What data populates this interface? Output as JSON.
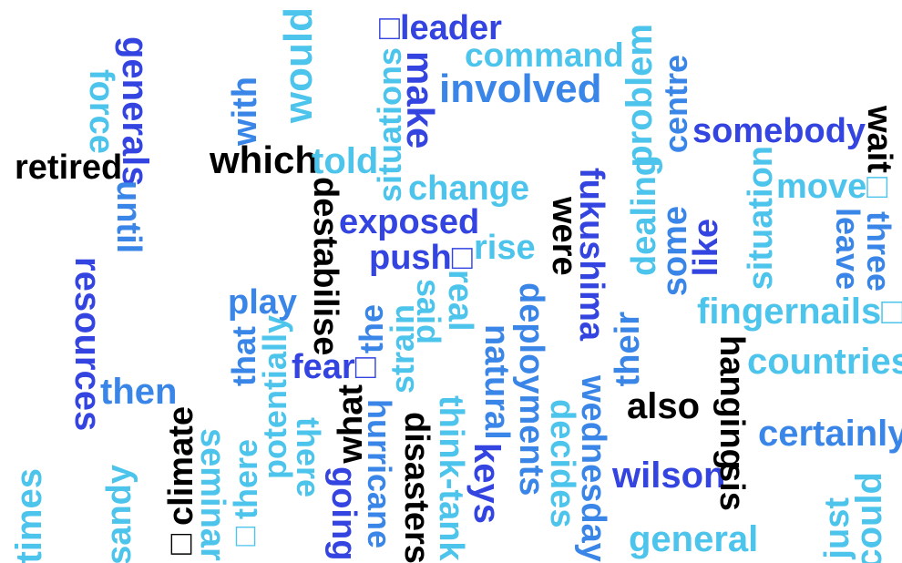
{
  "colors": {
    "black": "#000000",
    "royal_blue": "#3344e0",
    "mid_blue": "#3a86e8",
    "sky_blue": "#4cc4ec",
    "cyan": "#3fd1e8"
  },
  "words": [
    {
      "id": "leader",
      "text": "□leader"
    },
    {
      "id": "command",
      "text": "command"
    },
    {
      "id": "involved",
      "text": "involved"
    },
    {
      "id": "would",
      "text": "would"
    },
    {
      "id": "generals",
      "text": "generals"
    },
    {
      "id": "force",
      "text": "force"
    },
    {
      "id": "with",
      "text": "with"
    },
    {
      "id": "situations",
      "text": "situations"
    },
    {
      "id": "make",
      "text": "make"
    },
    {
      "id": "problem",
      "text": "problem"
    },
    {
      "id": "centre",
      "text": "centre"
    },
    {
      "id": "somebody",
      "text": "somebody"
    },
    {
      "id": "wait",
      "text": "wait"
    },
    {
      "id": "retired",
      "text": "retired"
    },
    {
      "id": "which",
      "text": "which"
    },
    {
      "id": "told",
      "text": "told"
    },
    {
      "id": "until",
      "text": "until"
    },
    {
      "id": "destabilise",
      "text": "destabilise"
    },
    {
      "id": "change",
      "text": "change"
    },
    {
      "id": "fukushima",
      "text": "fukushima"
    },
    {
      "id": "were",
      "text": "were"
    },
    {
      "id": "dealing",
      "text": "dealing"
    },
    {
      "id": "some",
      "text": "some"
    },
    {
      "id": "like",
      "text": "like"
    },
    {
      "id": "situation",
      "text": "situation"
    },
    {
      "id": "move",
      "text": "move□"
    },
    {
      "id": "leave",
      "text": "leave"
    },
    {
      "id": "three",
      "text": "three"
    },
    {
      "id": "exposed",
      "text": "exposed"
    },
    {
      "id": "push",
      "text": "push□"
    },
    {
      "id": "rise",
      "text": "rise"
    },
    {
      "id": "resources",
      "text": "resources"
    },
    {
      "id": "play",
      "text": "play"
    },
    {
      "id": "said",
      "text": "said"
    },
    {
      "id": "real",
      "text": "real"
    },
    {
      "id": "fingernails",
      "text": "fingernails□"
    },
    {
      "id": "that",
      "text": "that"
    },
    {
      "id": "potentially",
      "text": "potentially"
    },
    {
      "id": "fear",
      "text": "fear□"
    },
    {
      "id": "the",
      "text": "the"
    },
    {
      "id": "strain",
      "text": "strain"
    },
    {
      "id": "deployments",
      "text": "deployments"
    },
    {
      "id": "natural",
      "text": "natural"
    },
    {
      "id": "their",
      "text": "their"
    },
    {
      "id": "hanging",
      "text": "hanging"
    },
    {
      "id": "countries",
      "text": "countries"
    },
    {
      "id": "then",
      "text": "then"
    },
    {
      "id": "also",
      "text": "also"
    },
    {
      "id": "what",
      "text": "what"
    },
    {
      "id": "wednesday",
      "text": "wednesday"
    },
    {
      "id": "decides",
      "text": "decides"
    },
    {
      "id": "certainly",
      "text": "certainly"
    },
    {
      "id": "climate",
      "text": "□climate"
    },
    {
      "id": "seminar",
      "text": "seminar"
    },
    {
      "id": "there_box",
      "text": "□there"
    },
    {
      "id": "there",
      "text": "there"
    },
    {
      "id": "hurricane",
      "text": "hurricane"
    },
    {
      "id": "disasters",
      "text": "disasters"
    },
    {
      "id": "think_tank",
      "text": "think-tank"
    },
    {
      "id": "keys",
      "text": "keys"
    },
    {
      "id": "sis",
      "text": "sis"
    },
    {
      "id": "wilson",
      "text": "wilson"
    },
    {
      "id": "times",
      "text": "times"
    },
    {
      "id": "sandy",
      "text": "sandy"
    },
    {
      "id": "going",
      "text": "going"
    },
    {
      "id": "general",
      "text": "general"
    },
    {
      "id": "just",
      "text": "just"
    },
    {
      "id": "could",
      "text": "could"
    }
  ]
}
